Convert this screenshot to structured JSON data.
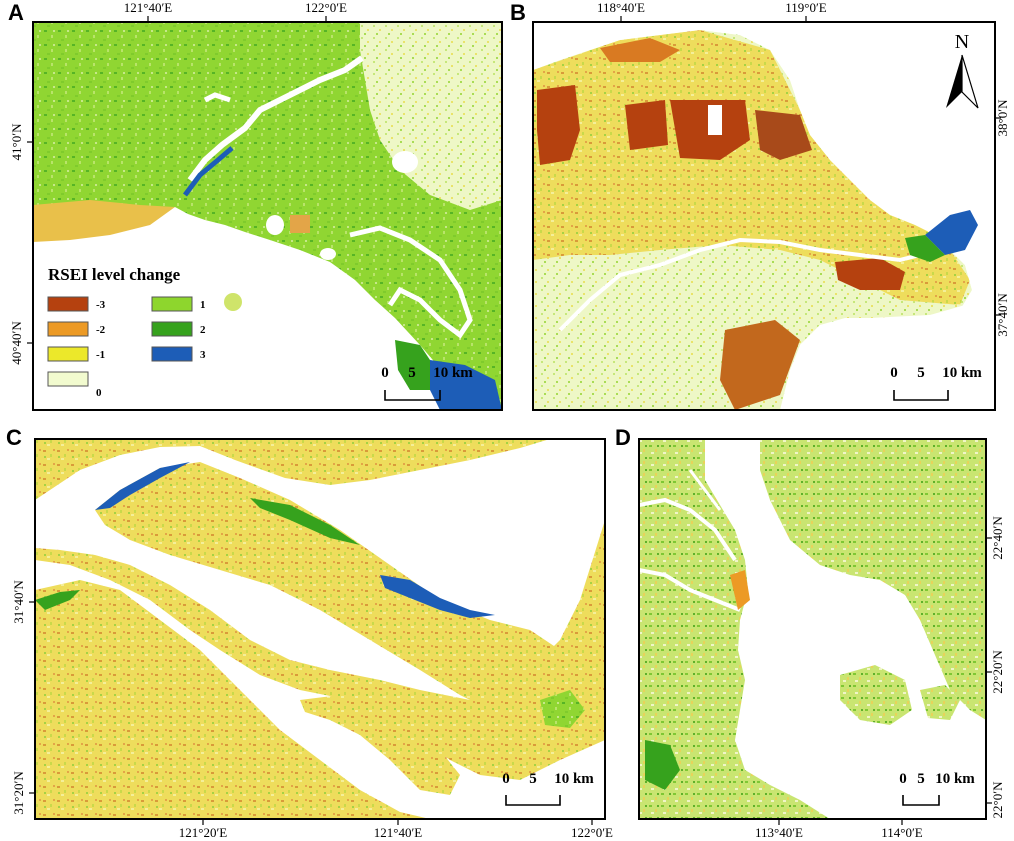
{
  "colors": {
    "minus3": "#b5410f",
    "minus2": "#ec9a25",
    "minus1": "#ece82a",
    "zero": "#f2fbcf",
    "plus1": "#8ed62d",
    "plus2": "#36a21d",
    "plus3": "#1d5db7",
    "water": "#ffffff",
    "frame": "#000000"
  },
  "panels": {
    "a": {
      "letter": "A",
      "lon_ticks": [
        "121°40′E",
        "122°0′E"
      ],
      "lat_ticks": [
        "41°0′N",
        "40°40′N"
      ],
      "scale": {
        "t0": "0",
        "t5": "5",
        "t10": "10 km"
      }
    },
    "b": {
      "letter": "B",
      "lon_ticks": [
        "118°40′E",
        "119°0′E"
      ],
      "lat_ticks": [
        "38°0′N",
        "37°40′N"
      ],
      "north": "N",
      "scale": {
        "t0": "0",
        "t5": "5",
        "t10": "10 km"
      }
    },
    "c": {
      "letter": "C",
      "lon_ticks": [
        "121°20′E",
        "121°40′E",
        "122°0′E"
      ],
      "lat_ticks": [
        "31°40′N",
        "31°20′N"
      ],
      "scale": {
        "t0": "0",
        "t5": "5",
        "t10": "10 km"
      }
    },
    "d": {
      "letter": "D",
      "lon_ticks": [
        "113°40′E",
        "114°0′E"
      ],
      "lat_ticks": [
        "22°40′N",
        "22°20′N",
        "22°0′N"
      ],
      "scale": {
        "t0": "0",
        "t5": "5",
        "t10": "10 km"
      }
    }
  },
  "legend": {
    "title": "RSEI level change",
    "items": [
      {
        "label": "-3",
        "color": "#b5410f"
      },
      {
        "label": "-2",
        "color": "#ec9a25"
      },
      {
        "label": "-1",
        "color": "#ece82a"
      },
      {
        "label": "0",
        "color": "#f2fbcf"
      },
      {
        "label": "1",
        "color": "#8ed62d"
      },
      {
        "label": "2",
        "color": "#36a21d"
      },
      {
        "label": "3",
        "color": "#1d5db7"
      }
    ]
  }
}
